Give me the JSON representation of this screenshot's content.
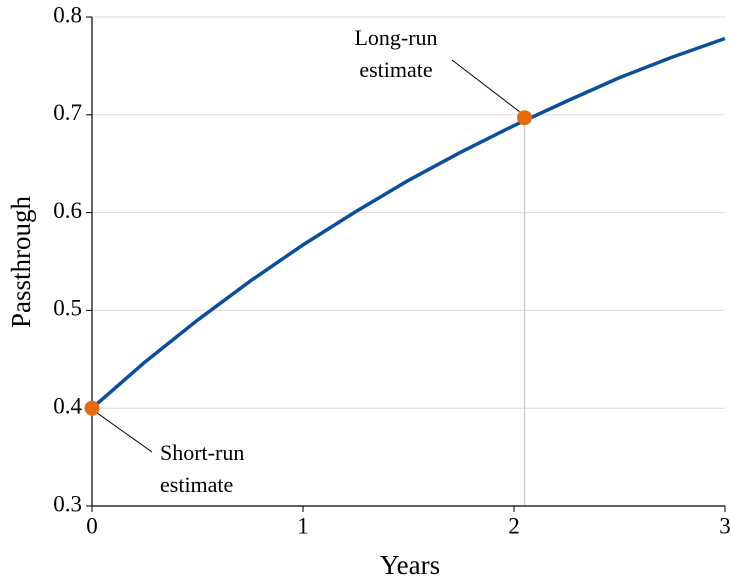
{
  "chart_data": {
    "type": "line",
    "x_label": "Years",
    "y_label": "Passthrough",
    "x": [
      0,
      0.25,
      0.5,
      0.75,
      1,
      1.25,
      1.5,
      1.75,
      2,
      2.25,
      2.5,
      2.75,
      3
    ],
    "series": [
      {
        "color": "#0b4f9a",
        "values": [
          0.4,
          0.447,
          0.49,
          0.53,
          0.567,
          0.601,
          0.633,
          0.662,
          0.689,
          0.714,
          0.738,
          0.759,
          0.778
        ]
      }
    ],
    "markers": {
      "x": [
        0,
        2.05
      ],
      "y": [
        0.4,
        0.697
      ],
      "color": "#e36c0a",
      "labels": [
        [
          "Short-run",
          "estimate"
        ],
        [
          "Long-run",
          "estimate"
        ]
      ]
    },
    "xlim": [
      0,
      3
    ],
    "xticks": [
      0,
      1,
      2,
      3
    ],
    "ylim": [
      0.3,
      0.8
    ],
    "yticks": [
      0.3,
      0.4,
      0.5,
      0.6,
      0.7,
      0.8
    ],
    "grid": true
  }
}
